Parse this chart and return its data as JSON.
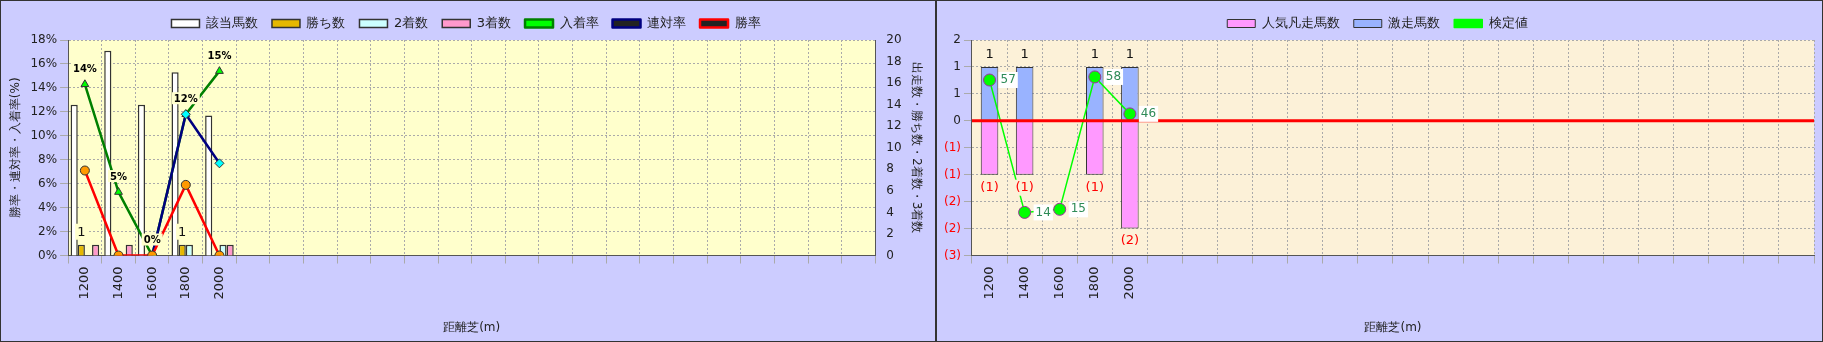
{
  "chart_data": [
    {
      "type": "bar",
      "xlabel": "距離芝(m)",
      "ylabel": "勝率・連対率・入着率(%)",
      "y2label": "出走数・勝ち数・2着数・3着数",
      "categories": [
        "1200",
        "1400",
        "1600",
        "1800",
        "2000",
        null,
        null,
        null,
        null,
        null,
        null,
        null,
        null,
        null,
        null,
        null,
        null,
        null,
        null,
        null,
        null,
        null,
        null,
        null
      ],
      "series": [
        {
          "name": "該当馬数",
          "axis": "y2",
          "color": "#ffffff",
          "values": [
            14,
            19,
            14,
            17,
            13,
            null,
            null,
            null,
            null,
            null,
            null,
            null,
            null,
            null,
            null,
            null,
            null,
            null,
            null,
            null,
            null,
            null,
            null,
            null
          ]
        },
        {
          "name": "勝ち数",
          "axis": "y2",
          "color": "#e6b800",
          "values": [
            1,
            0,
            0,
            1,
            0,
            null,
            null,
            null,
            null,
            null,
            null,
            null,
            null,
            null,
            null,
            null,
            null,
            null,
            null,
            null,
            null,
            null,
            null,
            null
          ],
          "value_labels": [
            "1",
            null,
            null,
            "1",
            null,
            null,
            null,
            null,
            null,
            null,
            null,
            null,
            null,
            null,
            null,
            null,
            null,
            null,
            null,
            null,
            null,
            null,
            null,
            null
          ]
        },
        {
          "name": "2着数",
          "axis": "y2",
          "color": "#ccffff",
          "values": [
            0,
            0,
            0,
            1,
            1,
            null,
            null,
            null,
            null,
            null,
            null,
            null,
            null,
            null,
            null,
            null,
            null,
            null,
            null,
            null,
            null,
            null,
            null,
            null
          ]
        },
        {
          "name": "3着数",
          "axis": "y2",
          "color": "#ff99cc",
          "values": [
            1,
            1,
            0,
            0,
            1,
            null,
            null,
            null,
            null,
            null,
            null,
            null,
            null,
            null,
            null,
            null,
            null,
            null,
            null,
            null,
            null,
            null,
            null,
            null
          ]
        },
        {
          "name": "入着率",
          "type": "line",
          "color": "#008000",
          "colors": [
            "#00ff00",
            "#00ff00",
            "#00ff00",
            "#00ff00",
            "#00ff00",
            null,
            null,
            null,
            null,
            null,
            null,
            null,
            null,
            null,
            null,
            null,
            null,
            null,
            null,
            null,
            null,
            null,
            null,
            null
          ],
          "marker": "triangle",
          "values": [
            14.3,
            5.3,
            0,
            11.8,
            15.4,
            null,
            null,
            null,
            null,
            null,
            null,
            null,
            null,
            null,
            null,
            null,
            null,
            null,
            null,
            null,
            null,
            null,
            null,
            null
          ],
          "value_labels": [
            "14%",
            "5%",
            "0%",
            "12%",
            "15%",
            null,
            null,
            null,
            null,
            null,
            null,
            null,
            null,
            null,
            null,
            null,
            null,
            null,
            null,
            null,
            null,
            null,
            null,
            null
          ]
        },
        {
          "name": "連対率",
          "type": "line",
          "color": "#000080",
          "colors": [
            "#00ffff",
            "#00ffff",
            "#00ffff",
            "#00ffff",
            "#00ffff",
            null,
            null,
            null,
            null,
            null,
            null,
            null,
            null,
            null,
            null,
            null,
            null,
            null,
            null,
            null,
            null,
            null,
            null,
            null
          ],
          "marker": "diamond",
          "values": [
            null,
            null,
            0,
            11.8,
            7.7,
            null,
            null,
            null,
            null,
            null,
            null,
            null,
            null,
            null,
            null,
            null,
            null,
            null,
            null,
            null,
            null,
            null,
            null,
            null
          ]
        },
        {
          "name": "勝率",
          "type": "line",
          "color": "#ff0000",
          "colors": [
            "#ff9900",
            "#ff9900",
            "#ff9900",
            "#ff9900",
            "#ff9900",
            null,
            null,
            null,
            null,
            null,
            null,
            null,
            null,
            null,
            null,
            null,
            null,
            null,
            null,
            null,
            null,
            null,
            null,
            null
          ],
          "marker": "circle",
          "values": [
            7.1,
            0,
            0,
            5.9,
            0,
            null,
            null,
            null,
            null,
            null,
            null,
            null,
            null,
            null,
            null,
            null,
            null,
            null,
            null,
            null,
            null,
            null,
            null,
            null
          ]
        }
      ],
      "ylim": [
        0,
        18
      ],
      "yticks": [
        {
          "value": 0,
          "label": "0%"
        },
        {
          "value": 2,
          "label": "2%"
        },
        {
          "value": 4,
          "label": "4%"
        },
        {
          "value": 6,
          "label": "6%"
        },
        {
          "value": 8,
          "label": "8%"
        },
        {
          "value": 10,
          "label": "10%"
        },
        {
          "value": 12,
          "label": "12%"
        },
        {
          "value": 14,
          "label": "14%"
        },
        {
          "value": 16,
          "label": "16%"
        },
        {
          "value": 18,
          "label": "18%"
        }
      ],
      "y2lim": [
        0,
        20
      ],
      "y2ticks": [
        0,
        2,
        4,
        6,
        8,
        10,
        12,
        14,
        16,
        18,
        20
      ],
      "grid": true,
      "legend": "top"
    },
    {
      "type": "bar",
      "xlabel": "距離芝(m)",
      "stacked": true,
      "categories": [
        "1200",
        "1400",
        "1600",
        "1800",
        "2000",
        null,
        null,
        null,
        null,
        null,
        null,
        null,
        null,
        null,
        null,
        null,
        null,
        null,
        null,
        null,
        null,
        null,
        null,
        null
      ],
      "series": [
        {
          "name": "人気凡走馬数",
          "color": "#ff99ff",
          "values": [
            -1,
            -1,
            null,
            -1,
            -2,
            null,
            null,
            null,
            null,
            null,
            null,
            null,
            null,
            null,
            null,
            null,
            null,
            null,
            null,
            null,
            null,
            null,
            null,
            null
          ],
          "value_labels": [
            "(1)",
            "(1)",
            null,
            "(1)",
            "(2)",
            null,
            null,
            null,
            null,
            null,
            null,
            null,
            null,
            null,
            null,
            null,
            null,
            null,
            null,
            null,
            null,
            null,
            null,
            null
          ]
        },
        {
          "name": "激走馬数",
          "color": "#99b3ff",
          "values": [
            1,
            1,
            null,
            1,
            1,
            null,
            null,
            null,
            null,
            null,
            null,
            null,
            null,
            null,
            null,
            null,
            null,
            null,
            null,
            null,
            null,
            null,
            null,
            null
          ],
          "value_labels": [
            "1",
            "1",
            null,
            "1",
            "1",
            null,
            null,
            null,
            null,
            null,
            null,
            null,
            null,
            null,
            null,
            null,
            null,
            null,
            null,
            null,
            null,
            null,
            null,
            null
          ]
        },
        {
          "name": "検定値",
          "type": "line",
          "axis": "y2",
          "color": "#00ff00",
          "marker": "circle",
          "values": [
            57,
            14,
            15,
            58,
            46,
            null,
            null,
            null,
            null,
            null,
            null,
            null,
            null,
            null,
            null,
            null,
            null,
            null,
            null,
            null,
            null,
            null,
            null,
            null
          ],
          "value_labels": [
            "57",
            "14",
            "15",
            "58",
            "46",
            null,
            null,
            null,
            null,
            null,
            null,
            null,
            null,
            null,
            null,
            null,
            null,
            null,
            null,
            null,
            null,
            null,
            null,
            null
          ]
        }
      ],
      "ylim": [
        -2.5,
        1.5
      ],
      "yticks": [
        {
          "value": -2.5,
          "label": "(3)"
        },
        {
          "value": -2,
          "label": "(2)"
        },
        {
          "value": -1.5,
          "label": "(2)"
        },
        {
          "value": -1,
          "label": "(1)"
        },
        {
          "value": -0.5,
          "label": "(1)"
        },
        0,
        {
          "value": 0.5,
          "label": "1"
        },
        {
          "value": 1,
          "label": "1"
        },
        {
          "value": 1.5,
          "label": "2"
        }
      ],
      "y2lim": [
        0,
        70
      ],
      "ref_lines": [
        {
          "axis": "y",
          "value": 0,
          "color": "#ff0000"
        }
      ],
      "grid": true,
      "legend": "top"
    }
  ]
}
